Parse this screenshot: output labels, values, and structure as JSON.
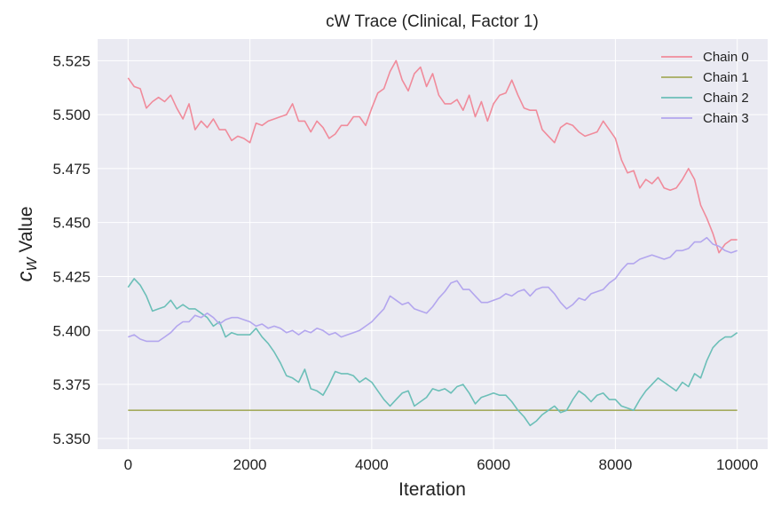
{
  "chart_data": {
    "type": "line",
    "title": "cW Trace (Clinical, Factor 1)",
    "xlabel": "Iteration",
    "ylabel_main": "c",
    "ylabel_sub": "W",
    "ylabel_rest": " Value",
    "xlim": [
      -500,
      10500
    ],
    "ylim": [
      5.345,
      5.535
    ],
    "xticks": [
      0,
      2000,
      4000,
      6000,
      8000,
      10000
    ],
    "xtick_labels": [
      "0",
      "2000",
      "4000",
      "6000",
      "8000",
      "10000"
    ],
    "yticks": [
      5.35,
      5.375,
      5.4,
      5.425,
      5.45,
      5.475,
      5.5,
      5.525
    ],
    "ytick_labels": [
      "5.350",
      "5.375",
      "5.400",
      "5.425",
      "5.450",
      "5.475",
      "5.500",
      "5.525"
    ],
    "grid": true,
    "legend_position": "top-right",
    "background": "#eaeaf2",
    "series": [
      {
        "name": "Chain 0",
        "color": "#f08b9b",
        "x": [
          0,
          100,
          200,
          300,
          400,
          500,
          600,
          700,
          800,
          900,
          1000,
          1100,
          1200,
          1300,
          1400,
          1500,
          1600,
          1700,
          1800,
          1900,
          2000,
          2100,
          2200,
          2300,
          2400,
          2500,
          2600,
          2700,
          2800,
          2900,
          3000,
          3100,
          3200,
          3300,
          3400,
          3500,
          3600,
          3700,
          3800,
          3900,
          4000,
          4100,
          4200,
          4300,
          4400,
          4500,
          4600,
          4700,
          4800,
          4900,
          5000,
          5100,
          5200,
          5300,
          5400,
          5500,
          5600,
          5700,
          5800,
          5900,
          6000,
          6100,
          6200,
          6300,
          6400,
          6500,
          6600,
          6700,
          6800,
          6900,
          7000,
          7100,
          7200,
          7300,
          7400,
          7500,
          7600,
          7700,
          7800,
          7900,
          8000,
          8100,
          8200,
          8300,
          8400,
          8500,
          8600,
          8700,
          8800,
          8900,
          9000,
          9100,
          9200,
          9300,
          9400,
          9500,
          9600,
          9700,
          9800,
          9900,
          10000
        ],
        "y": [
          5.517,
          5.513,
          5.512,
          5.503,
          5.506,
          5.508,
          5.506,
          5.509,
          5.503,
          5.498,
          5.505,
          5.493,
          5.497,
          5.494,
          5.498,
          5.493,
          5.493,
          5.488,
          5.49,
          5.489,
          5.487,
          5.496,
          5.495,
          5.497,
          5.498,
          5.499,
          5.5,
          5.505,
          5.497,
          5.497,
          5.492,
          5.497,
          5.494,
          5.489,
          5.491,
          5.495,
          5.495,
          5.499,
          5.499,
          5.495,
          5.503,
          5.51,
          5.512,
          5.52,
          5.525,
          5.516,
          5.511,
          5.519,
          5.522,
          5.513,
          5.519,
          5.509,
          5.505,
          5.505,
          5.507,
          5.502,
          5.509,
          5.499,
          5.506,
          5.497,
          5.505,
          5.509,
          5.51,
          5.516,
          5.509,
          5.503,
          5.502,
          5.502,
          5.493,
          5.49,
          5.487,
          5.494,
          5.496,
          5.495,
          5.492,
          5.49,
          5.491,
          5.492,
          5.497,
          5.493,
          5.489,
          5.479,
          5.473,
          5.474,
          5.466,
          5.47,
          5.468,
          5.471,
          5.466,
          5.465,
          5.466,
          5.47,
          5.475,
          5.47,
          5.458,
          5.452,
          5.445,
          5.436,
          5.44,
          5.442,
          5.442
        ]
      },
      {
        "name": "Chain 1",
        "color": "#a5ab5e",
        "x": [
          0,
          10000
        ],
        "y": [
          5.363,
          5.363
        ]
      },
      {
        "name": "Chain 2",
        "color": "#6cbfb8",
        "x": [
          0,
          100,
          200,
          300,
          400,
          500,
          600,
          700,
          800,
          900,
          1000,
          1100,
          1200,
          1300,
          1400,
          1500,
          1600,
          1700,
          1800,
          1900,
          2000,
          2100,
          2200,
          2300,
          2400,
          2500,
          2600,
          2700,
          2800,
          2900,
          3000,
          3100,
          3200,
          3300,
          3400,
          3500,
          3600,
          3700,
          3800,
          3900,
          4000,
          4100,
          4200,
          4300,
          4400,
          4500,
          4600,
          4700,
          4800,
          4900,
          5000,
          5100,
          5200,
          5300,
          5400,
          5500,
          5600,
          5700,
          5800,
          5900,
          6000,
          6100,
          6200,
          6300,
          6400,
          6500,
          6600,
          6700,
          6800,
          6900,
          7000,
          7100,
          7200,
          7300,
          7400,
          7500,
          7600,
          7700,
          7800,
          7900,
          8000,
          8100,
          8200,
          8300,
          8400,
          8500,
          8600,
          8700,
          8800,
          8900,
          9000,
          9100,
          9200,
          9300,
          9400,
          9500,
          9600,
          9700,
          9800,
          9900,
          10000
        ],
        "y": [
          5.42,
          5.424,
          5.421,
          5.416,
          5.409,
          5.41,
          5.411,
          5.414,
          5.41,
          5.412,
          5.41,
          5.41,
          5.408,
          5.406,
          5.402,
          5.404,
          5.397,
          5.399,
          5.398,
          5.398,
          5.398,
          5.401,
          5.397,
          5.394,
          5.39,
          5.385,
          5.379,
          5.378,
          5.376,
          5.382,
          5.373,
          5.372,
          5.37,
          5.375,
          5.381,
          5.38,
          5.38,
          5.379,
          5.376,
          5.378,
          5.376,
          5.372,
          5.368,
          5.365,
          5.368,
          5.371,
          5.372,
          5.365,
          5.367,
          5.369,
          5.373,
          5.372,
          5.373,
          5.371,
          5.374,
          5.375,
          5.371,
          5.366,
          5.369,
          5.37,
          5.371,
          5.37,
          5.37,
          5.367,
          5.363,
          5.36,
          5.356,
          5.358,
          5.361,
          5.363,
          5.365,
          5.362,
          5.363,
          5.368,
          5.372,
          5.37,
          5.367,
          5.37,
          5.371,
          5.368,
          5.368,
          5.365,
          5.364,
          5.363,
          5.368,
          5.372,
          5.375,
          5.378,
          5.376,
          5.374,
          5.372,
          5.376,
          5.374,
          5.38,
          5.378,
          5.386,
          5.392,
          5.395,
          5.397,
          5.397,
          5.399
        ]
      },
      {
        "name": "Chain 3",
        "color": "#b3a6ee",
        "x": [
          0,
          100,
          200,
          300,
          400,
          500,
          600,
          700,
          800,
          900,
          1000,
          1100,
          1200,
          1300,
          1400,
          1500,
          1600,
          1700,
          1800,
          1900,
          2000,
          2100,
          2200,
          2300,
          2400,
          2500,
          2600,
          2700,
          2800,
          2900,
          3000,
          3100,
          3200,
          3300,
          3400,
          3500,
          3600,
          3700,
          3800,
          3900,
          4000,
          4100,
          4200,
          4300,
          4400,
          4500,
          4600,
          4700,
          4800,
          4900,
          5000,
          5100,
          5200,
          5300,
          5400,
          5500,
          5600,
          5700,
          5800,
          5900,
          6000,
          6100,
          6200,
          6300,
          6400,
          6500,
          6600,
          6700,
          6800,
          6900,
          7000,
          7100,
          7200,
          7300,
          7400,
          7500,
          7600,
          7700,
          7800,
          7900,
          8000,
          8100,
          8200,
          8300,
          8400,
          8500,
          8600,
          8700,
          8800,
          8900,
          9000,
          9100,
          9200,
          9300,
          9400,
          9500,
          9600,
          9700,
          9800,
          9900,
          10000
        ],
        "y": [
          5.397,
          5.398,
          5.396,
          5.395,
          5.395,
          5.395,
          5.397,
          5.399,
          5.402,
          5.404,
          5.404,
          5.407,
          5.406,
          5.408,
          5.406,
          5.403,
          5.405,
          5.406,
          5.406,
          5.405,
          5.404,
          5.402,
          5.403,
          5.401,
          5.402,
          5.401,
          5.399,
          5.4,
          5.398,
          5.4,
          5.399,
          5.401,
          5.4,
          5.398,
          5.399,
          5.397,
          5.398,
          5.399,
          5.4,
          5.402,
          5.404,
          5.407,
          5.41,
          5.416,
          5.414,
          5.412,
          5.413,
          5.41,
          5.409,
          5.408,
          5.411,
          5.415,
          5.418,
          5.422,
          5.423,
          5.419,
          5.419,
          5.416,
          5.413,
          5.413,
          5.414,
          5.415,
          5.417,
          5.416,
          5.418,
          5.419,
          5.416,
          5.419,
          5.42,
          5.42,
          5.417,
          5.413,
          5.41,
          5.412,
          5.415,
          5.414,
          5.417,
          5.418,
          5.419,
          5.422,
          5.424,
          5.428,
          5.431,
          5.431,
          5.433,
          5.434,
          5.435,
          5.434,
          5.433,
          5.434,
          5.437,
          5.437,
          5.438,
          5.441,
          5.441,
          5.443,
          5.44,
          5.439,
          5.437,
          5.436,
          5.437
        ]
      }
    ]
  }
}
